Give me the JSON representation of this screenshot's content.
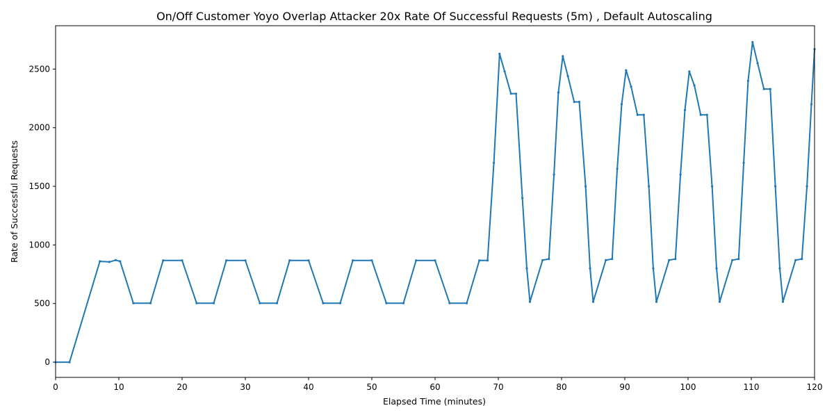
{
  "chart_data": {
    "type": "line",
    "title": "On/Off Customer Yoyo Overlap Attacker 20x Rate Of Successful Requests (5m) , Default Autoscaling",
    "xlabel": "Elapsed Time (minutes)",
    "ylabel": "Rate of Successful Requests",
    "xlim": [
      0,
      120
    ],
    "ylim": [
      -130,
      2870
    ],
    "xticks": [
      0,
      10,
      20,
      30,
      40,
      50,
      60,
      70,
      80,
      90,
      100,
      110,
      120
    ],
    "yticks": [
      0,
      500,
      1000,
      1500,
      2000,
      2500
    ],
    "grid": false,
    "series": [
      {
        "color": "#1f77b4",
        "x": [
          0,
          2.2,
          7,
          8.5,
          9.5,
          10.2,
          12.3,
          15,
          17,
          20,
          22.3,
          25,
          27,
          30,
          32.3,
          35,
          37,
          40,
          42.3,
          45,
          47,
          50,
          52.3,
          55,
          57,
          60,
          62.3,
          65,
          67,
          68.3,
          69.3,
          70.2,
          71,
          72,
          72.8,
          73.8,
          74.5,
          75,
          77,
          78,
          78.8,
          79.5,
          80.2,
          81,
          82,
          82.8,
          83.8,
          84.5,
          85,
          87,
          88,
          88.8,
          89.5,
          90.2,
          91,
          92,
          93,
          93.8,
          94.5,
          95,
          97,
          98,
          98.8,
          99.5,
          100.2,
          101,
          102,
          103,
          103.8,
          104.5,
          105,
          107,
          108,
          108.8,
          109.5,
          110.2,
          111,
          112,
          113,
          113.8,
          114.5,
          115,
          117,
          118,
          118.8,
          119.5,
          120
        ],
        "y": [
          0,
          0,
          860,
          855,
          870,
          860,
          503,
          503,
          868,
          868,
          503,
          503,
          868,
          868,
          503,
          503,
          868,
          868,
          503,
          503,
          868,
          868,
          503,
          503,
          868,
          868,
          503,
          503,
          868,
          868,
          1700,
          2630,
          2480,
          2290,
          2290,
          1400,
          800,
          515,
          870,
          880,
          1600,
          2300,
          2610,
          2440,
          2220,
          2220,
          1500,
          800,
          515,
          870,
          880,
          1650,
          2200,
          2490,
          2350,
          2110,
          2110,
          1500,
          800,
          515,
          870,
          880,
          1600,
          2150,
          2480,
          2360,
          2110,
          2110,
          1500,
          800,
          515,
          870,
          880,
          1700,
          2400,
          2730,
          2550,
          2330,
          2330,
          1500,
          800,
          515,
          870,
          880,
          1500,
          2200,
          2670
        ]
      }
    ]
  }
}
